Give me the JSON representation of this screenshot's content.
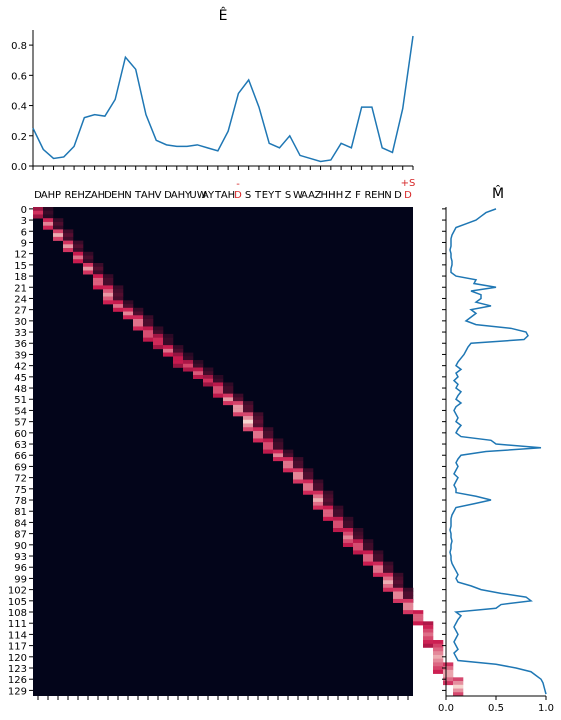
{
  "colors": {
    "line": "#1f77b4",
    "axis": "#000000",
    "highlight": "#d62728",
    "heat_low": "#03051a",
    "heat_mid": "#cb1b4f",
    "heat_high": "#faebdd"
  },
  "chart_data": [
    {
      "type": "line",
      "title": "Ê",
      "ylim": [
        0,
        0.9
      ],
      "y_ticks": [
        "0.0",
        "0.2",
        "0.4",
        "0.6",
        "0.8"
      ],
      "x": [
        0,
        1,
        2,
        3,
        4,
        5,
        6,
        7,
        8,
        9,
        10,
        11,
        12,
        13,
        14,
        15,
        16,
        17,
        18,
        19,
        20,
        21,
        22,
        23,
        24,
        25,
        26,
        27,
        28,
        29,
        30,
        31,
        32,
        33,
        34,
        35,
        36,
        37
      ],
      "values": [
        0.25,
        0.11,
        0.05,
        0.06,
        0.13,
        0.32,
        0.34,
        0.33,
        0.44,
        0.72,
        0.64,
        0.34,
        0.17,
        0.14,
        0.13,
        0.13,
        0.14,
        0.12,
        0.1,
        0.23,
        0.48,
        0.57,
        0.39,
        0.15,
        0.12,
        0.2,
        0.07,
        0.05,
        0.03,
        0.04,
        0.15,
        0.12,
        0.39,
        0.39,
        0.12,
        0.09,
        0.38,
        0.86
      ]
    },
    {
      "type": "heatmap",
      "x_tick_labels": [
        "D",
        "AH",
        "P",
        "R",
        "EH",
        "Z",
        "AH",
        "D",
        "EH",
        "N",
        "T",
        "AH",
        "V",
        "D",
        "AH",
        "Y",
        "UW",
        "AY",
        "T",
        "AH",
        "D",
        "S",
        "T",
        "EY",
        "T",
        "S",
        "W",
        "AA",
        "Z",
        "HH",
        "IH",
        "Z",
        "F",
        "R",
        "EH",
        "N",
        "D"
      ],
      "x_highlight_index": 20,
      "x_highlight_prefix": "-",
      "x_extra_label": "+S",
      "y_tick_labels": [
        "0",
        "3",
        "6",
        "9",
        "12",
        "15",
        "18",
        "21",
        "24",
        "27",
        "30",
        "33",
        "36",
        "39",
        "42",
        "45",
        "48",
        "51",
        "54",
        "57",
        "60",
        "63",
        "66",
        "69",
        "72",
        "75",
        "78",
        "81",
        "84",
        "87",
        "90",
        "93",
        "96",
        "99",
        "102",
        "105",
        "108",
        "111",
        "114",
        "117",
        "120",
        "123",
        "126",
        "129"
      ],
      "rows": 131,
      "cols": 38,
      "cells": [
        [
          0,
          0,
          3,
          0.55
        ],
        [
          0,
          37,
          3,
          0.4
        ],
        [
          1,
          3,
          6,
          0.75
        ],
        [
          2,
          6,
          9,
          0.85
        ],
        [
          3,
          9,
          12,
          0.8
        ],
        [
          4,
          12,
          15,
          0.7
        ],
        [
          5,
          15,
          18,
          0.8
        ],
        [
          6,
          18,
          22,
          0.75
        ],
        [
          7,
          21,
          26,
          0.8
        ],
        [
          8,
          25,
          28,
          0.7
        ],
        [
          9,
          27,
          30,
          0.75
        ],
        [
          10,
          29,
          33,
          0.8
        ],
        [
          11,
          32,
          36,
          0.7
        ],
        [
          12,
          34,
          38,
          0.6
        ],
        [
          13,
          37,
          40,
          0.7
        ],
        [
          14,
          39,
          43,
          0.55
        ],
        [
          15,
          41,
          44,
          0.6
        ],
        [
          16,
          43,
          46,
          0.65
        ],
        [
          17,
          45,
          48,
          0.55
        ],
        [
          18,
          47,
          51,
          0.7
        ],
        [
          19,
          50,
          53,
          0.8
        ],
        [
          20,
          52,
          56,
          0.9
        ],
        [
          21,
          55,
          60,
          0.95
        ],
        [
          22,
          59,
          63,
          0.8
        ],
        [
          23,
          62,
          66,
          0.7
        ],
        [
          24,
          65,
          68,
          0.75
        ],
        [
          25,
          67,
          71,
          0.8
        ],
        [
          26,
          70,
          74,
          0.85
        ],
        [
          27,
          73,
          77,
          0.8
        ],
        [
          28,
          76,
          81,
          0.85
        ],
        [
          29,
          80,
          84,
          0.75
        ],
        [
          30,
          83,
          87,
          0.7
        ],
        [
          31,
          86,
          91,
          0.75
        ],
        [
          32,
          89,
          93,
          0.7
        ],
        [
          33,
          92,
          96,
          0.75
        ],
        [
          34,
          95,
          99,
          0.8
        ],
        [
          35,
          98,
          103,
          0.85
        ],
        [
          36,
          102,
          106,
          0.85
        ],
        [
          37,
          105,
          109,
          0.85
        ],
        [
          38,
          108,
          112,
          0.75
        ],
        [
          39,
          111,
          118,
          0.7
        ],
        [
          40,
          116,
          125,
          0.85
        ],
        [
          41,
          122,
          128,
          0.9
        ],
        [
          42,
          126,
          131,
          0.95
        ]
      ],
      "neighbor_fraction": 0.25
    },
    {
      "type": "line",
      "title": "M̂",
      "orientation": "vertical",
      "xlim": [
        0,
        1.0
      ],
      "x_ticks": [
        "0.0",
        "0.5",
        "1.0"
      ],
      "y_count": 131,
      "values": [
        0.5,
        0.4,
        0.35,
        0.3,
        0.2,
        0.1,
        0.08,
        0.06,
        0.05,
        0.05,
        0.05,
        0.04,
        0.05,
        0.05,
        0.06,
        0.06,
        0.05,
        0.05,
        0.1,
        0.3,
        0.28,
        0.5,
        0.25,
        0.35,
        0.35,
        0.3,
        0.45,
        0.25,
        0.3,
        0.25,
        0.2,
        0.3,
        0.65,
        0.8,
        0.82,
        0.78,
        0.25,
        0.22,
        0.2,
        0.18,
        0.15,
        0.12,
        0.1,
        0.15,
        0.1,
        0.12,
        0.08,
        0.12,
        0.1,
        0.15,
        0.12,
        0.1,
        0.15,
        0.1,
        0.08,
        0.1,
        0.12,
        0.1,
        0.15,
        0.12,
        0.1,
        0.15,
        0.45,
        0.5,
        0.95,
        0.4,
        0.15,
        0.12,
        0.1,
        0.12,
        0.1,
        0.08,
        0.12,
        0.1,
        0.08,
        0.1,
        0.1,
        0.3,
        0.45,
        0.28,
        0.1,
        0.08,
        0.06,
        0.05,
        0.05,
        0.05,
        0.04,
        0.05,
        0.05,
        0.06,
        0.05,
        0.05,
        0.04,
        0.05,
        0.05,
        0.06,
        0.08,
        0.1,
        0.12,
        0.1,
        0.12,
        0.25,
        0.35,
        0.55,
        0.8,
        0.85,
        0.55,
        0.5,
        0.1,
        0.15,
        0.12,
        0.1,
        0.08,
        0.1,
        0.12,
        0.1,
        0.08,
        0.1,
        0.12,
        0.08,
        0.1,
        0.12,
        0.5,
        0.7,
        0.85,
        0.9,
        0.95,
        0.97,
        0.98,
        0.99,
        1.0
      ]
    }
  ]
}
